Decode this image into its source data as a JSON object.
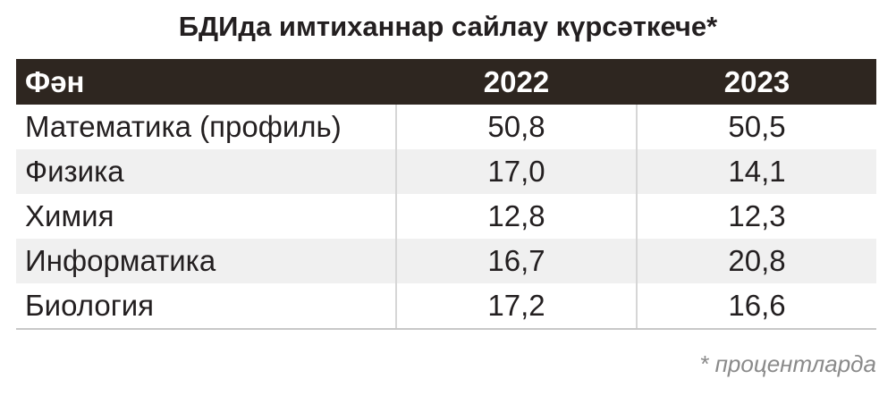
{
  "title": "БДИда имтиханнар сайлау күрсәткече*",
  "table": {
    "header": [
      "Фән",
      "2022",
      "2023"
    ],
    "rows": [
      [
        "Математика (профиль)",
        "50,8",
        "50,5"
      ],
      [
        "Физика",
        "17,0",
        "14,1"
      ],
      [
        "Химия",
        "12,8",
        "12,3"
      ],
      [
        "Информатика",
        "16,7",
        "20,8"
      ],
      [
        "Биология",
        "17,2",
        "16,6"
      ]
    ]
  },
  "footnote": "* процентларда"
}
